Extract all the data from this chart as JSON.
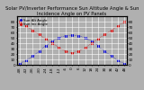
{
  "title": "Solar PV/Inverter Performance Sun Altitude Angle & Sun Incidence Angle on PV Panels",
  "blue_label": "Sun Alt Angle",
  "red_label": "Sun Inc Angle",
  "x_values": [
    -48,
    -42,
    -36,
    -30,
    -24,
    -18,
    -12,
    -6,
    0,
    6,
    12,
    18,
    24,
    30,
    36,
    42,
    48
  ],
  "blue_values": [
    2,
    8,
    16,
    25,
    35,
    44,
    50,
    54,
    55,
    54,
    50,
    44,
    35,
    25,
    16,
    8,
    2
  ],
  "red_values": [
    80,
    72,
    64,
    56,
    48,
    40,
    32,
    25,
    22,
    25,
    32,
    40,
    48,
    56,
    64,
    72,
    80
  ],
  "blue_color": "#0000cc",
  "red_color": "#cc0000",
  "bg_color": "#b0b0b0",
  "plot_bg": "#b0b0b0",
  "xlim": [
    -50,
    50
  ],
  "ylim": [
    0,
    90
  ],
  "xticks": [
    -48,
    -42,
    -36,
    -30,
    -24,
    -18,
    -12,
    -6,
    0,
    6,
    12,
    18,
    24,
    30,
    36,
    42,
    48
  ],
  "yticks": [
    0,
    10,
    20,
    30,
    40,
    50,
    60,
    70,
    80
  ],
  "grid_color": "#ffffff",
  "title_fontsize": 3.8,
  "tick_fontsize": 3.0,
  "legend_fontsize": 2.8,
  "marker_size": 1.2,
  "linewidth": 0.4
}
